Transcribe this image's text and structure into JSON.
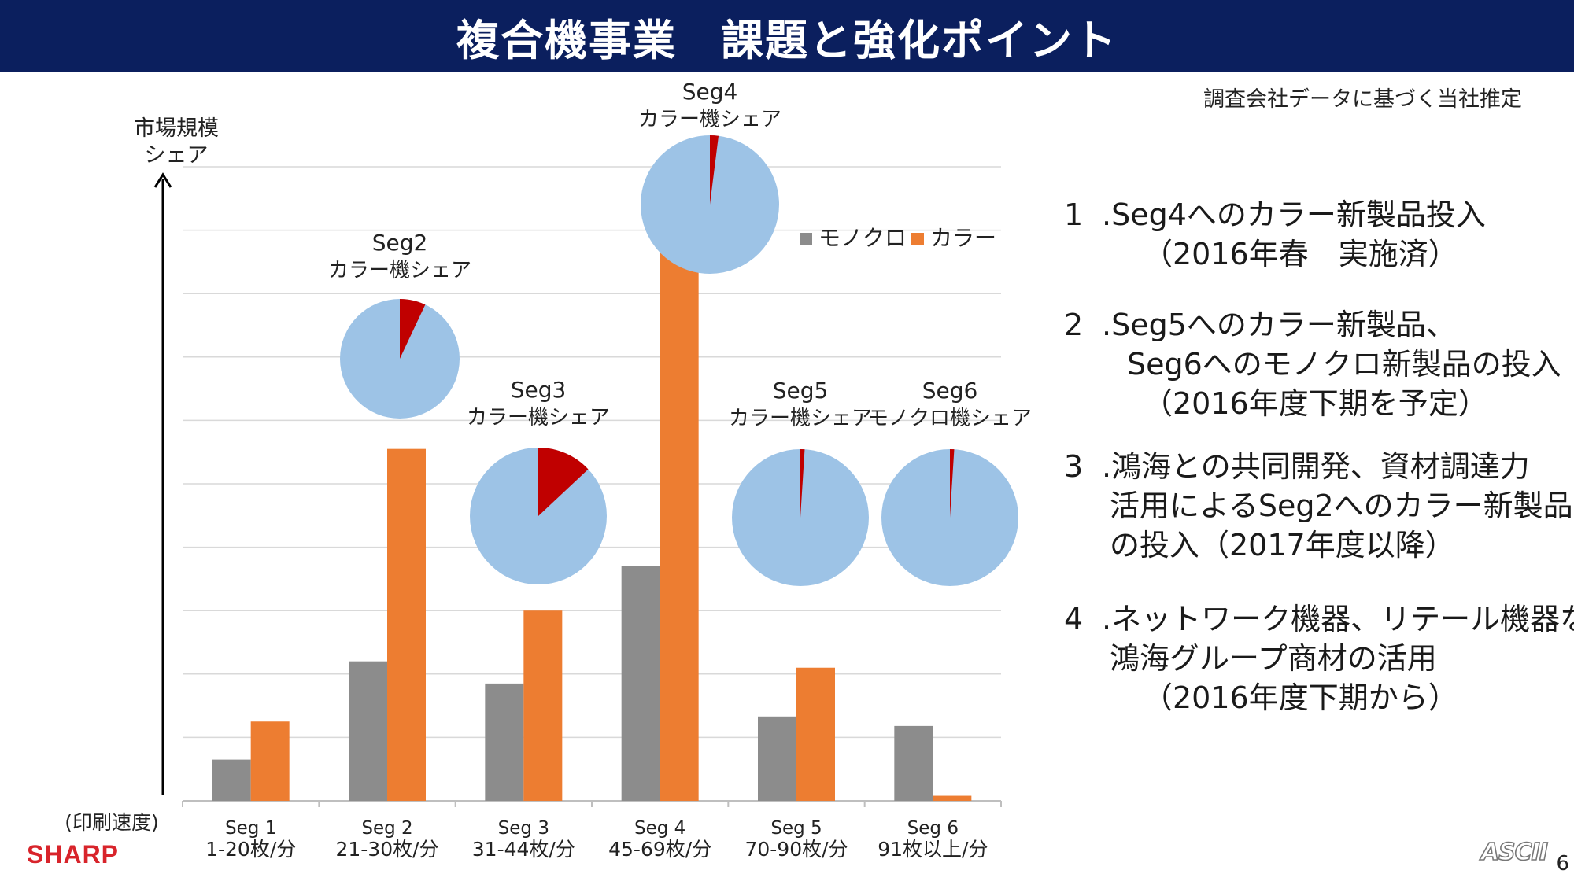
{
  "header": {
    "title": "複合機事業　課題と強化ポイント",
    "source_note": "調査会社データに基づく当社推定"
  },
  "colors": {
    "title_bar": "#0b1f5e",
    "mono": "#8c8c8c",
    "color": "#ed7d31",
    "pie_base": "#9dc3e6",
    "pie_share": "#c00000",
    "brand": "#d8242b"
  },
  "chart_data": {
    "type": "bar",
    "ylabel_lines": [
      "市場規模",
      "シェア"
    ],
    "xlabel": "(印刷速度)",
    "categories": [
      {
        "name": "Seg 1",
        "range": "1-20枚/分"
      },
      {
        "name": "Seg 2",
        "range": "21-30枚/分"
      },
      {
        "name": "Seg 3",
        "range": "31-44枚/分"
      },
      {
        "name": "Seg 4",
        "range": "45-69枚/分"
      },
      {
        "name": "Seg 5",
        "range": "70-90枚/分"
      },
      {
        "name": "Seg 6",
        "range": "91枚以上/分"
      }
    ],
    "series": [
      {
        "name": "モノクロ",
        "values": [
          0.65,
          2.2,
          1.85,
          3.7,
          1.33,
          1.18
        ]
      },
      {
        "name": "カラー",
        "values": [
          1.25,
          5.55,
          3.0,
          8.85,
          2.1,
          0.08
        ]
      }
    ],
    "ylim": [
      0,
      10
    ],
    "grid": true,
    "legend_position": "top-right",
    "pies": [
      {
        "segment": "Seg2",
        "label": "カラー機シェア",
        "share": 0.07
      },
      {
        "segment": "Seg3",
        "label": "カラー機シェア",
        "share": 0.13
      },
      {
        "segment": "Seg4",
        "label": "カラー機シェア",
        "share": 0.02
      },
      {
        "segment": "Seg5",
        "label": "カラー機シェア",
        "share": 0.01
      },
      {
        "segment": "Seg6",
        "label": "モノクロ機シェア",
        "share": 0.01
      }
    ]
  },
  "points": [
    {
      "num": "1",
      "lines": [
        ".Seg4へのカラー新製品投入",
        "（2016年春　実施済）"
      ]
    },
    {
      "num": "2",
      "lines": [
        ".Seg5へのカラー新製品、",
        "Seg6へのモノクロ新製品の投入",
        "（2016年度下期を予定）"
      ]
    },
    {
      "num": "3",
      "lines": [
        ".鴻海との共同開発、資材調達力",
        "活用によるSeg2へのカラー新製品",
        "の投入（2017年度以降）"
      ]
    },
    {
      "num": "4",
      "lines": [
        ".ネットワーク機器、リテール機器など",
        "鴻海グループ商材の活用",
        "（2016年度下期から）"
      ]
    }
  ],
  "footer": {
    "brand": "SHARP",
    "asci": "ASCII",
    "page_number": "6"
  }
}
